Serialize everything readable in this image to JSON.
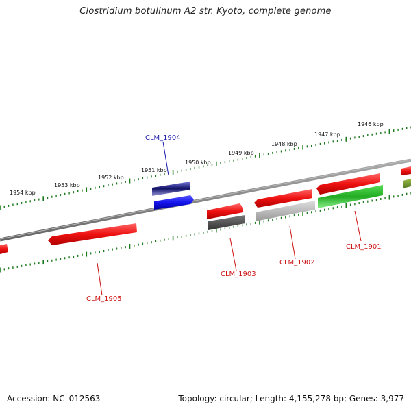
{
  "title": "Clostridium botulinum A2 str. Kyoto, complete genome",
  "footer": {
    "accession": "Accession: NC_012563",
    "summary": "Topology: circular; Length: 4,155,278 bp; Genes: 3,977"
  },
  "scale_labels": [
    "1954 kbp",
    "1953 kbp",
    "1952 kbp",
    "1951 kbp",
    "1950 kbp",
    "1949 kbp",
    "1948 kbp",
    "1947 kbp",
    "1946 kbp"
  ],
  "gene_labels": [
    {
      "text": "CLM_1904",
      "color": "#1a1aaa"
    },
    {
      "text": "CLM_1905",
      "color": "#cc1111"
    },
    {
      "text": "CLM_1903",
      "color": "#cc1111"
    },
    {
      "text": "CLM_1902",
      "color": "#cc1111"
    },
    {
      "text": "CLM_1901",
      "color": "#cc1111"
    }
  ],
  "colors": {
    "backbone": "#888888",
    "scale": "#1e7a1e",
    "red": "#ee1111",
    "blue": "#1515ee",
    "green": "#22bb22",
    "gray": "#555555",
    "lightgray": "#bbbbbb"
  }
}
